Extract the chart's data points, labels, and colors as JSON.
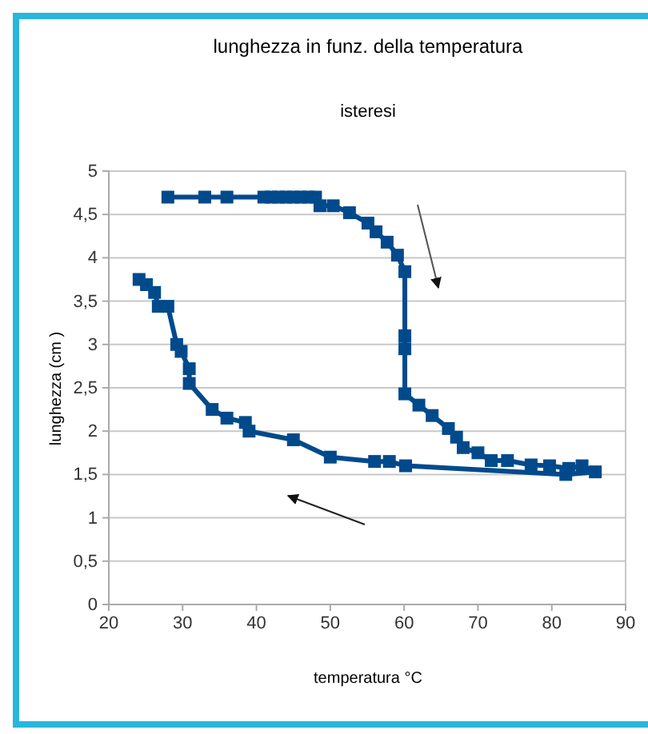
{
  "chart_data": {
    "type": "line",
    "title": "lunghezza in funz. della temperatura",
    "subtitle": "isteresi",
    "xlabel": "temperatura °C",
    "ylabel": "lunghezza (cm )",
    "series": [
      {
        "color": "#004a8c",
        "x": [
          28,
          33,
          36,
          41,
          42,
          43,
          44,
          45,
          46,
          47,
          48,
          48.6,
          50.4,
          52.6,
          55.1,
          56.2,
          57.7,
          59.1,
          60.1,
          60.1,
          60.1,
          60.1,
          62,
          63.8,
          66,
          67.1,
          68,
          70,
          71.8,
          74,
          77.2,
          79.7,
          82.3,
          84.1,
          85.9,
          81.9,
          60.2,
          58,
          56,
          50,
          45,
          39,
          38.5,
          36,
          34,
          30.9,
          30.9,
          29.8,
          29.2,
          28,
          26.7,
          26.2,
          25.1,
          24.1
        ],
        "values": [
          4.7,
          4.7,
          4.7,
          4.7,
          4.7,
          4.7,
          4.7,
          4.7,
          4.7,
          4.7,
          4.7,
          4.6,
          4.6,
          4.52,
          4.4,
          4.3,
          4.18,
          4.03,
          3.84,
          3.1,
          2.95,
          2.43,
          2.3,
          2.18,
          2.03,
          1.93,
          1.81,
          1.75,
          1.66,
          1.66,
          1.61,
          1.6,
          1.57,
          1.6,
          1.53,
          1.5,
          1.6,
          1.65,
          1.65,
          1.7,
          1.9,
          2.0,
          2.1,
          2.15,
          2.25,
          2.55,
          2.72,
          2.92,
          3.0,
          3.44,
          3.44,
          3.6,
          3.69,
          3.75
        ]
      }
    ],
    "xlim": [
      20,
      90
    ],
    "xticks": [
      20,
      30,
      40,
      50,
      60,
      70,
      80,
      90
    ],
    "ylim": [
      0,
      5
    ],
    "yticks": [
      0,
      {
        "value": 0.5,
        "label": "0,5"
      },
      1,
      {
        "value": 1.5,
        "label": "1,5"
      },
      2,
      {
        "value": 2.5,
        "label": "2,5"
      },
      3,
      {
        "value": 3.5,
        "label": "3,5"
      },
      4,
      {
        "value": 4.5,
        "label": "4,5"
      },
      5
    ],
    "grid": "y",
    "marker": "square",
    "line_style": "solid"
  }
}
